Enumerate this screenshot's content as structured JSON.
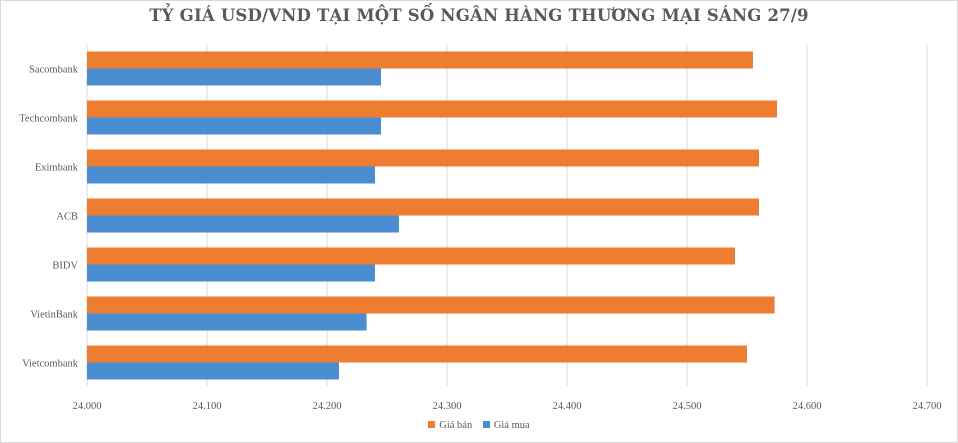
{
  "colors": {
    "sell": "#ED7D31",
    "buy": "#4A8ED1",
    "grid": "#d9d9d9",
    "text": "#595959"
  },
  "chart_data": {
    "type": "bar",
    "orientation": "horizontal",
    "title": "TỶ GIÁ USD/VND TẠI MỘT SỐ NGÂN HÀNG THƯƠNG MẠI SÁNG 27/9",
    "categories": [
      "Sacombank",
      "Techcombank",
      "Eximbank",
      "ACB",
      "BIDV",
      "VietinBank",
      "Vietcombank"
    ],
    "series": [
      {
        "name": "Giá bán",
        "color": "#ED7D31",
        "values": [
          24555,
          24575,
          24560,
          24560,
          24540,
          24573,
          24550
        ]
      },
      {
        "name": "Giá mua",
        "color": "#4A8ED1",
        "values": [
          24245,
          24245,
          24240,
          24260,
          24240,
          24233,
          24210
        ]
      }
    ],
    "xlim": [
      24000,
      24700
    ],
    "xticks": [
      24000,
      24100,
      24200,
      24300,
      24400,
      24500,
      24600,
      24700
    ],
    "xtick_labels": [
      "24.000",
      "24.100",
      "24.200",
      "24.300",
      "24.400",
      "24.500",
      "24.600",
      "24.700"
    ],
    "grid": "vertical",
    "legend": "bottom"
  }
}
